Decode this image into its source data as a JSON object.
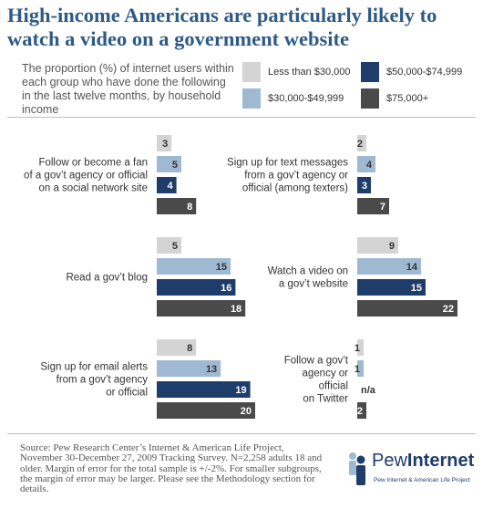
{
  "header": {
    "title_line1": "High-income Americans are particularly likely to",
    "title_line2": "watch a video on a government website",
    "subtitle": "The proportion (%) of internet users within each group who have done the following in the last twelve months, by household income"
  },
  "colors": {
    "less_than_30k": "#d4d4d4",
    "30k_50k": "#9fb9d3",
    "50k_75k": "#1f3d6a",
    "75k_plus": "#4a4a4a",
    "title": "#2e5a86"
  },
  "chart_data": {
    "type": "bar",
    "orientation": "horizontal",
    "title": "High-income Americans are particularly likely to watch a video on a government website",
    "legend_placement": "top-right",
    "series": [
      {
        "name": "Less than $30,000",
        "color": "#d4d4d4"
      },
      {
        "name": "$30,000-$49,999",
        "color": "#9fb9d3"
      },
      {
        "name": "$50,000-$74,999",
        "color": "#1f3d6a"
      },
      {
        "name": "$75,000+",
        "color": "#4a4a4a"
      }
    ],
    "panels": [
      {
        "column": "left",
        "category_lines": [
          "Follow or become a fan",
          "of a gov’t agency or official",
          "on a social network site"
        ],
        "values": [
          3,
          5,
          4,
          8
        ],
        "labels": [
          "3",
          "5",
          "4",
          "8"
        ]
      },
      {
        "column": "left",
        "category_lines": [
          "Read a gov’t blog"
        ],
        "values": [
          5,
          15,
          16,
          18
        ],
        "labels": [
          "5",
          "15",
          "16",
          "18"
        ]
      },
      {
        "column": "left",
        "category_lines": [
          "Sign up for email alerts",
          "from a gov’t agency",
          "or official"
        ],
        "values": [
          8,
          13,
          19,
          20
        ],
        "labels": [
          "8",
          "13",
          "19",
          "20"
        ]
      },
      {
        "column": "right",
        "category_lines": [
          "Sign up for text messages",
          "from a gov’t agency or",
          "official (among texters)"
        ],
        "values": [
          2,
          4,
          3,
          7
        ],
        "labels": [
          "2",
          "4",
          "3",
          "7"
        ]
      },
      {
        "column": "right",
        "category_lines": [
          "Watch a video on",
          "a gov’t website"
        ],
        "values": [
          9,
          14,
          15,
          22
        ],
        "labels": [
          "9",
          "14",
          "15",
          "22"
        ]
      },
      {
        "column": "right",
        "category_lines": [
          "Follow a gov’t",
          "agency or",
          "official",
          "on Twitter"
        ],
        "values": [
          1,
          1,
          null,
          2
        ],
        "labels": [
          "1",
          "1",
          "n/a",
          "2"
        ]
      }
    ]
  },
  "footer": {
    "source": "Source: Pew Research Center’s Internet & American Life Project, November 30-December 27, 2009 Tracking Survey. N=2,258 adults 18 and older. Margin of error for the total sample is +/-2%. For smaller subgroups, the margin of error may be larger. Please see the Methodology section for details.",
    "logo_word1": "Pew",
    "logo_word2": "Internet",
    "logo_tagline": "Pew Internet & American Life Project"
  }
}
